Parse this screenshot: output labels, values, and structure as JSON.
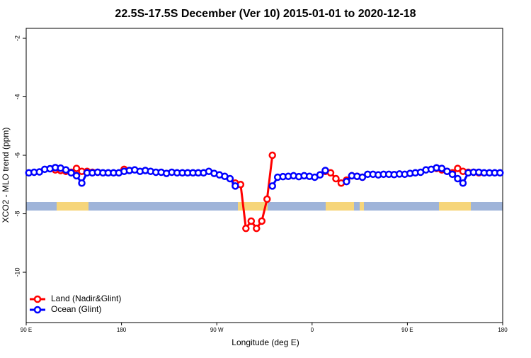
{
  "chart_data": {
    "type": "line",
    "title": "22.5S-17.5S December (Ver 10)   2015-01-01 to 2020-12-18",
    "x_label": "Longitude (deg E)",
    "y_label": "XCO2 - MLO trend (ppm)",
    "x": [
      92.5,
      97.5,
      102.5,
      107.5,
      112.5,
      117.5,
      122.5,
      127.5,
      132.5,
      137.5,
      142.5,
      147.5,
      152.5,
      157.5,
      162.5,
      167.5,
      172.5,
      177.5,
      182.5,
      187.5,
      192.5,
      197.5,
      202.5,
      207.5,
      212.5,
      217.5,
      222.5,
      227.5,
      232.5,
      237.5,
      242.5,
      247.5,
      252.5,
      257.5,
      262.5,
      267.5,
      272.5,
      277.5,
      282.5,
      287.5,
      292.5,
      297.5,
      302.5,
      307.5,
      312.5,
      317.5,
      322.5,
      327.5,
      332.5,
      337.5,
      342.5,
      347.5,
      352.5,
      357.5,
      362.5,
      367.5,
      372.5,
      377.5,
      382.5,
      387.5,
      392.5,
      397.5,
      402.5,
      407.5,
      412.5,
      417.5,
      422.5,
      427.5,
      432.5,
      437.5,
      442.5,
      447.5,
      452.5,
      457.5,
      462.5,
      467.5,
      472.5,
      477.5,
      482.5,
      487.5,
      492.5,
      497.5,
      502.5,
      507.5,
      512.5,
      517.5,
      522.5,
      527.5,
      532.5,
      537.5
    ],
    "series": [
      {
        "name": "Land (Nadir&Glint)",
        "color": "#ff0000",
        "values": [
          null,
          null,
          null,
          null,
          null,
          -6.5,
          -6.52,
          -6.55,
          -6.58,
          -6.45,
          -6.55,
          -6.55,
          -6.58,
          -6.58,
          null,
          null,
          null,
          null,
          -6.48,
          null,
          null,
          null,
          null,
          null,
          null,
          null,
          null,
          null,
          null,
          null,
          null,
          null,
          null,
          null,
          null,
          null,
          null,
          null,
          null,
          -6.95,
          -7.0,
          -8.5,
          -8.25,
          -8.5,
          -8.25,
          -7.5,
          -6.0,
          null,
          null,
          null,
          null,
          null,
          null,
          null,
          null,
          null,
          -6.55,
          -6.6,
          -6.8,
          -6.95,
          -6.85,
          -6.7,
          -6.72,
          -6.75,
          null,
          null,
          null,
          null,
          null,
          null,
          null,
          null,
          null,
          null,
          null,
          null,
          null,
          -6.45,
          -6.5,
          -6.55,
          -6.6,
          -6.45,
          -6.55,
          -6.58,
          -6.58,
          -6.6,
          null,
          null,
          null,
          null
        ]
      },
      {
        "name": "Ocean (Glint)",
        "color": "#0000ff",
        "values": [
          -6.6,
          -6.58,
          -6.57,
          -6.48,
          -6.46,
          -6.42,
          -6.44,
          -6.5,
          -6.6,
          -6.7,
          -6.95,
          -6.6,
          -6.6,
          -6.58,
          -6.6,
          -6.6,
          -6.6,
          -6.6,
          -6.55,
          -6.52,
          -6.5,
          -6.55,
          -6.52,
          -6.55,
          -6.58,
          -6.58,
          -6.62,
          -6.58,
          -6.6,
          -6.6,
          -6.6,
          -6.6,
          -6.6,
          -6.6,
          -6.55,
          -6.62,
          -6.67,
          -6.72,
          -6.8,
          -7.05,
          null,
          null,
          null,
          null,
          null,
          null,
          -7.05,
          -6.75,
          -6.73,
          -6.72,
          -6.7,
          -6.73,
          -6.7,
          -6.72,
          -6.75,
          -6.67,
          -6.52,
          null,
          null,
          null,
          -6.9,
          -6.7,
          -6.72,
          -6.75,
          -6.65,
          -6.65,
          -6.67,
          -6.65,
          -6.65,
          -6.66,
          -6.64,
          -6.65,
          -6.62,
          -6.6,
          -6.58,
          -6.5,
          -6.48,
          -6.43,
          -6.45,
          -6.55,
          -6.65,
          -6.8,
          -6.95,
          -6.6,
          -6.58,
          -6.58,
          -6.6,
          -6.6,
          -6.6,
          -6.6
        ]
      }
    ],
    "xlim": [
      90,
      540
    ],
    "xticks": [
      {
        "value": 90,
        "label": "90 E"
      },
      180,
      {
        "value": 270,
        "label": "90 W"
      },
      {
        "value": 360,
        "label": "0"
      },
      {
        "value": 450,
        "label": "90 E"
      },
      {
        "value": 540,
        "label": "180"
      }
    ],
    "ylim": [
      -11.72,
      -1.66
    ],
    "yticks": [
      -2,
      -4,
      -6,
      -8,
      -10
    ],
    "legend": "bottom-left"
  }
}
